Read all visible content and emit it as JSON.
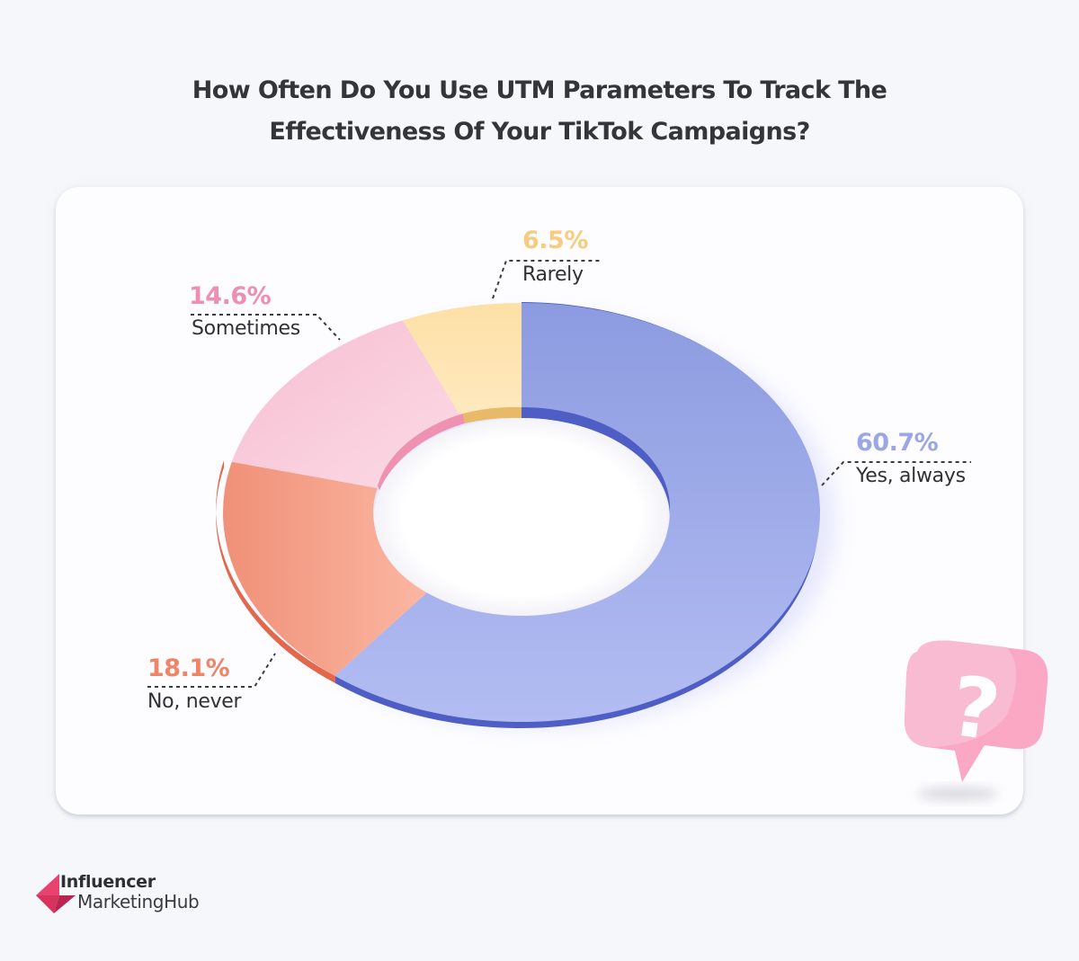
{
  "title": {
    "line1": "How Often Do You Use UTM Parameters To Track The",
    "line2": "Effectiveness Of Your TikTok Campaigns?"
  },
  "chart_data": {
    "type": "pie",
    "variant": "donut",
    "title": "How Often Do You Use UTM Parameters To Track The Effectiveness Of Your TikTok Campaigns?",
    "categories": [
      "Yes, always",
      "No, never",
      "Sometimes",
      "Rarely"
    ],
    "values": [
      60.7,
      18.1,
      14.6,
      6.5
    ],
    "unit": "%",
    "colors": [
      "#9aa6ea",
      "#f4a08a",
      "#f8c6d8",
      "#fde1a8"
    ],
    "start_angle": "12 o'clock",
    "direction": "clockwise",
    "legend": "none (callout labels)"
  },
  "labels": [
    {
      "key": "yes",
      "pct": "60.7%",
      "name": "Yes, always",
      "color": "#9aa6e6"
    },
    {
      "key": "no",
      "pct": "18.1%",
      "name": "No, never",
      "color": "#ef8466"
    },
    {
      "key": "sometimes",
      "pct": "14.6%",
      "name": "Sometimes",
      "color": "#ec8fb3"
    },
    {
      "key": "rarely",
      "pct": "6.5%",
      "name": "Rarely",
      "color": "#f7cc7f"
    }
  ],
  "decor": {
    "bubble_icon": "question-speech-bubble",
    "bubble_glyph": "?"
  },
  "brand": {
    "line1": "Influencer",
    "line2": "MarketingHub",
    "accent": "#e8436f"
  }
}
